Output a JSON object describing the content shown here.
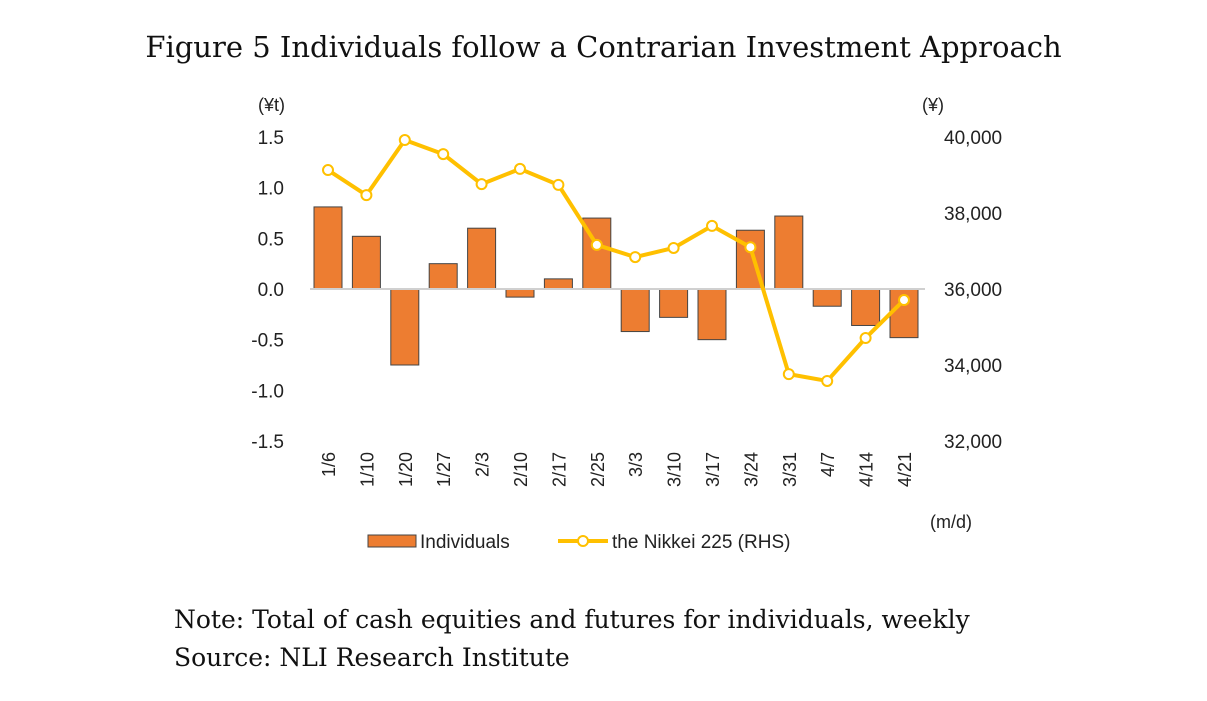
{
  "figure_title": "Figure 5 Individuals follow a Contrarian Investment Approach",
  "note": "Note: Total of cash equities and futures for individuals, weekly",
  "source": "Source: NLI Research Institute",
  "chart_data": {
    "type": "bar+line",
    "categories": [
      "1/6",
      "1/10",
      "1/20",
      "1/27",
      "2/3",
      "2/10",
      "2/17",
      "2/25",
      "3/3",
      "3/10",
      "3/17",
      "3/24",
      "3/31",
      "4/7",
      "4/14",
      "4/21"
    ],
    "xlabel": "(m/d)",
    "y_left": {
      "unit": "(¥t)",
      "range": [
        -1.5,
        1.5
      ],
      "ticks": [
        "1.5",
        "1.0",
        "0.5",
        "0.0",
        "-0.5",
        "-1.0",
        "-1.5"
      ]
    },
    "y_right": {
      "unit": "(¥)",
      "range": [
        32000,
        40000
      ],
      "ticks": [
        "40,000",
        "38,000",
        "36,000",
        "34,000",
        "32,000"
      ]
    },
    "series": [
      {
        "name": "Individuals",
        "type": "bar",
        "axis": "left",
        "color": "#ED7D31",
        "values": [
          0.81,
          0.52,
          -0.75,
          0.25,
          0.6,
          -0.08,
          0.1,
          0.7,
          -0.42,
          -0.28,
          -0.5,
          0.58,
          0.72,
          -0.17,
          -0.36,
          -0.48
        ]
      },
      {
        "name": "the Nikkei 225 (RHS)",
        "type": "line",
        "axis": "right",
        "color": "#FFC000",
        "values": [
          39130,
          38470,
          39920,
          39550,
          38760,
          39160,
          38740,
          37160,
          36840,
          37080,
          37660,
          37100,
          33760,
          33580,
          34710,
          35710
        ]
      }
    ],
    "legend": "bottom"
  }
}
